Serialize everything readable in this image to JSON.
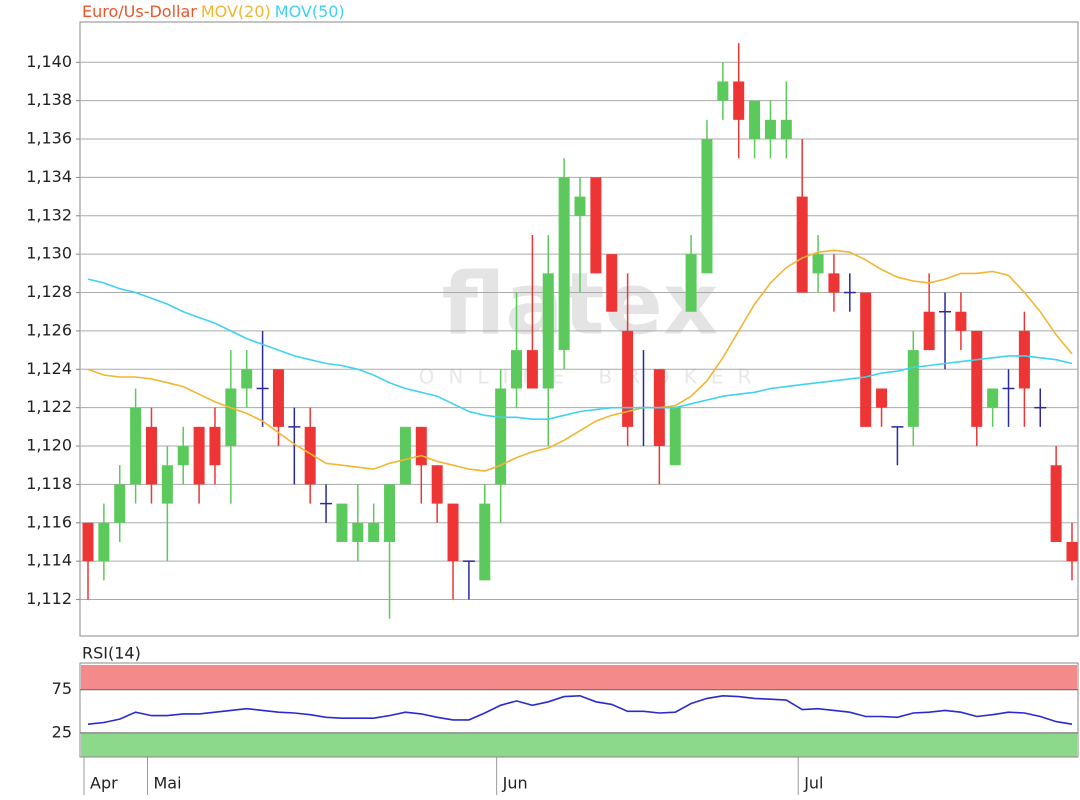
{
  "watermark": {
    "brand": "flatex",
    "tagline": "ONLINE BROKER"
  },
  "chart_data": [
    {
      "type": "candlestick",
      "title": "Euro/Us-Dollar",
      "categories": [
        "Apr",
        null,
        null,
        null,
        "Mai",
        null,
        null,
        null,
        null,
        null,
        null,
        null,
        null,
        null,
        null,
        null,
        null,
        null,
        null,
        null,
        null,
        null,
        null,
        null,
        null,
        null,
        "Jun",
        null,
        null,
        null,
        null,
        null,
        null,
        null,
        null,
        null,
        null,
        null,
        null,
        null,
        null,
        null,
        null,
        null,
        null,
        "Jul",
        null,
        null,
        null,
        null,
        null,
        null,
        null,
        null,
        null,
        null,
        null,
        null,
        null,
        null,
        null,
        null,
        null
      ],
      "open": [
        1.116,
        1.114,
        1.116,
        1.118,
        1.121,
        1.117,
        1.119,
        1.121,
        1.121,
        1.12,
        1.123,
        1.123,
        1.124,
        1.121,
        1.121,
        1.117,
        1.115,
        1.115,
        1.115,
        1.115,
        1.118,
        1.121,
        1.119,
        1.117,
        1.114,
        1.113,
        1.118,
        1.123,
        1.125,
        1.123,
        1.125,
        1.132,
        1.134,
        1.13,
        1.126,
        1.122,
        1.124,
        1.119,
        1.127,
        1.129,
        1.138,
        1.139,
        1.136,
        1.136,
        1.136,
        1.133,
        1.129,
        1.129,
        1.128,
        1.128,
        1.123,
        1.121,
        1.121,
        1.127,
        1.127,
        1.127,
        1.126,
        1.122,
        1.123,
        1.126,
        1.122,
        1.119,
        1.115
      ],
      "high": [
        1.116,
        1.117,
        1.119,
        1.123,
        1.122,
        1.12,
        1.121,
        1.121,
        1.122,
        1.125,
        1.125,
        1.126,
        1.124,
        1.122,
        1.122,
        1.118,
        1.117,
        1.118,
        1.117,
        1.118,
        1.121,
        1.121,
        1.119,
        1.117,
        1.114,
        1.118,
        1.124,
        1.128,
        1.131,
        1.131,
        1.135,
        1.134,
        1.134,
        1.13,
        1.129,
        1.125,
        1.124,
        1.122,
        1.131,
        1.137,
        1.14,
        1.141,
        1.138,
        1.138,
        1.139,
        1.136,
        1.131,
        1.13,
        1.129,
        1.128,
        1.123,
        1.121,
        1.126,
        1.129,
        1.128,
        1.128,
        1.126,
        1.123,
        1.124,
        1.127,
        1.123,
        1.12,
        1.116
      ],
      "low": [
        1.112,
        1.113,
        1.115,
        1.117,
        1.117,
        1.114,
        1.118,
        1.117,
        1.118,
        1.117,
        1.122,
        1.121,
        1.12,
        1.118,
        1.117,
        1.116,
        1.115,
        1.114,
        1.115,
        1.111,
        1.118,
        1.117,
        1.116,
        1.112,
        1.112,
        1.113,
        1.116,
        1.122,
        1.123,
        1.12,
        1.124,
        1.128,
        1.129,
        1.127,
        1.12,
        1.12,
        1.118,
        1.119,
        1.127,
        1.129,
        1.137,
        1.135,
        1.135,
        1.135,
        1.135,
        1.128,
        1.128,
        1.127,
        1.127,
        1.121,
        1.121,
        1.119,
        1.12,
        1.125,
        1.124,
        1.125,
        1.12,
        1.121,
        1.121,
        1.121,
        1.121,
        1.115,
        1.113
      ],
      "close": [
        1.114,
        1.116,
        1.118,
        1.122,
        1.118,
        1.119,
        1.12,
        1.118,
        1.119,
        1.123,
        1.124,
        1.123,
        1.121,
        1.121,
        1.118,
        1.117,
        1.117,
        1.116,
        1.116,
        1.118,
        1.121,
        1.119,
        1.117,
        1.114,
        1.114,
        1.117,
        1.123,
        1.125,
        1.123,
        1.129,
        1.134,
        1.133,
        1.129,
        1.127,
        1.121,
        1.122,
        1.12,
        1.122,
        1.13,
        1.136,
        1.139,
        1.137,
        1.138,
        1.137,
        1.137,
        1.128,
        1.13,
        1.128,
        1.128,
        1.121,
        1.122,
        1.121,
        1.125,
        1.125,
        1.127,
        1.126,
        1.121,
        1.123,
        1.123,
        1.123,
        1.122,
        1.115,
        1.114
      ],
      "up_color": "#5cc95c",
      "down_color": "#ee3535",
      "doji_color": "#2a2a9a",
      "series": [
        {
          "name": "MOV(20)",
          "color": "#f2b632",
          "values": [
            1.124,
            1.1237,
            1.1236,
            1.1236,
            1.1235,
            1.1233,
            1.1231,
            1.1227,
            1.1223,
            1.122,
            1.1217,
            1.1213,
            1.1207,
            1.1201,
            1.1196,
            1.1191,
            1.119,
            1.1189,
            1.1188,
            1.1191,
            1.1193,
            1.1195,
            1.1192,
            1.119,
            1.1188,
            1.1187,
            1.119,
            1.1194,
            1.1197,
            1.1199,
            1.1203,
            1.1208,
            1.1213,
            1.1216,
            1.1218,
            1.122,
            1.122,
            1.1221,
            1.1226,
            1.1234,
            1.1246,
            1.126,
            1.1274,
            1.1285,
            1.1293,
            1.1298,
            1.1301,
            1.1302,
            1.1301,
            1.1297,
            1.1292,
            1.1288,
            1.1286,
            1.1285,
            1.1287,
            1.129,
            1.129,
            1.1291,
            1.1289,
            1.128,
            1.127,
            1.1258,
            1.1248
          ]
        },
        {
          "name": "MOV(50)",
          "color": "#3fd3f0",
          "values": [
            1.1287,
            1.1285,
            1.1282,
            1.128,
            1.1277,
            1.1274,
            1.127,
            1.1267,
            1.1264,
            1.126,
            1.1256,
            1.1253,
            1.125,
            1.1247,
            1.1245,
            1.1243,
            1.1242,
            1.124,
            1.1237,
            1.1233,
            1.123,
            1.1228,
            1.1226,
            1.1222,
            1.1218,
            1.1216,
            1.1215,
            1.1215,
            1.1214,
            1.1214,
            1.1216,
            1.1218,
            1.1219,
            1.122,
            1.122,
            1.122,
            1.122,
            1.122,
            1.1222,
            1.1224,
            1.1226,
            1.1227,
            1.1228,
            1.123,
            1.1231,
            1.1232,
            1.1233,
            1.1234,
            1.1235,
            1.1236,
            1.1238,
            1.1239,
            1.1241,
            1.1242,
            1.1243,
            1.1244,
            1.1245,
            1.1246,
            1.1247,
            1.1247,
            1.1246,
            1.1245,
            1.1243
          ]
        }
      ],
      "ylim": [
        1.1101,
        1.1421
      ],
      "yticks": [
        {
          "value": 1.112,
          "label": "1,112"
        },
        {
          "value": 1.114,
          "label": "1,114"
        },
        {
          "value": 1.116,
          "label": "1,116"
        },
        {
          "value": 1.118,
          "label": "1,118"
        },
        {
          "value": 1.12,
          "label": "1,120"
        },
        {
          "value": 1.122,
          "label": "1,122"
        },
        {
          "value": 1.124,
          "label": "1,124"
        },
        {
          "value": 1.126,
          "label": "1,126"
        },
        {
          "value": 1.128,
          "label": "1,128"
        },
        {
          "value": 1.13,
          "label": "1,130"
        },
        {
          "value": 1.132,
          "label": "1,132"
        },
        {
          "value": 1.134,
          "label": "1,134"
        },
        {
          "value": 1.136,
          "label": "1,136"
        },
        {
          "value": 1.138,
          "label": "1,138"
        },
        {
          "value": 1.14,
          "label": "1,140"
        }
      ],
      "grid": true,
      "title_color": "#e8582c"
    },
    {
      "type": "line",
      "title": "RSI(14)",
      "title_color": "#2a2ab0",
      "series": [
        {
          "name": "RSI(14)",
          "color": "#2a2ad0",
          "values": [
            35,
            37,
            41,
            49,
            45,
            45,
            47,
            47,
            49,
            51,
            53,
            51,
            49,
            48,
            46,
            43,
            42,
            42,
            42,
            45,
            49,
            47,
            43,
            40,
            40,
            48,
            57,
            62,
            57,
            61,
            67,
            68,
            61,
            58,
            50,
            50,
            48,
            49,
            59,
            65,
            68,
            67,
            65,
            64,
            63,
            52,
            53,
            51,
            49,
            44,
            44,
            43,
            48,
            49,
            51,
            49,
            44,
            46,
            49,
            48,
            44,
            38,
            35
          ]
        }
      ],
      "ylim": [
        -3,
        106
      ],
      "yticks": [
        25,
        75
      ],
      "overbought_color": "#f58a8a",
      "oversold_color": "#8cd98c"
    }
  ]
}
